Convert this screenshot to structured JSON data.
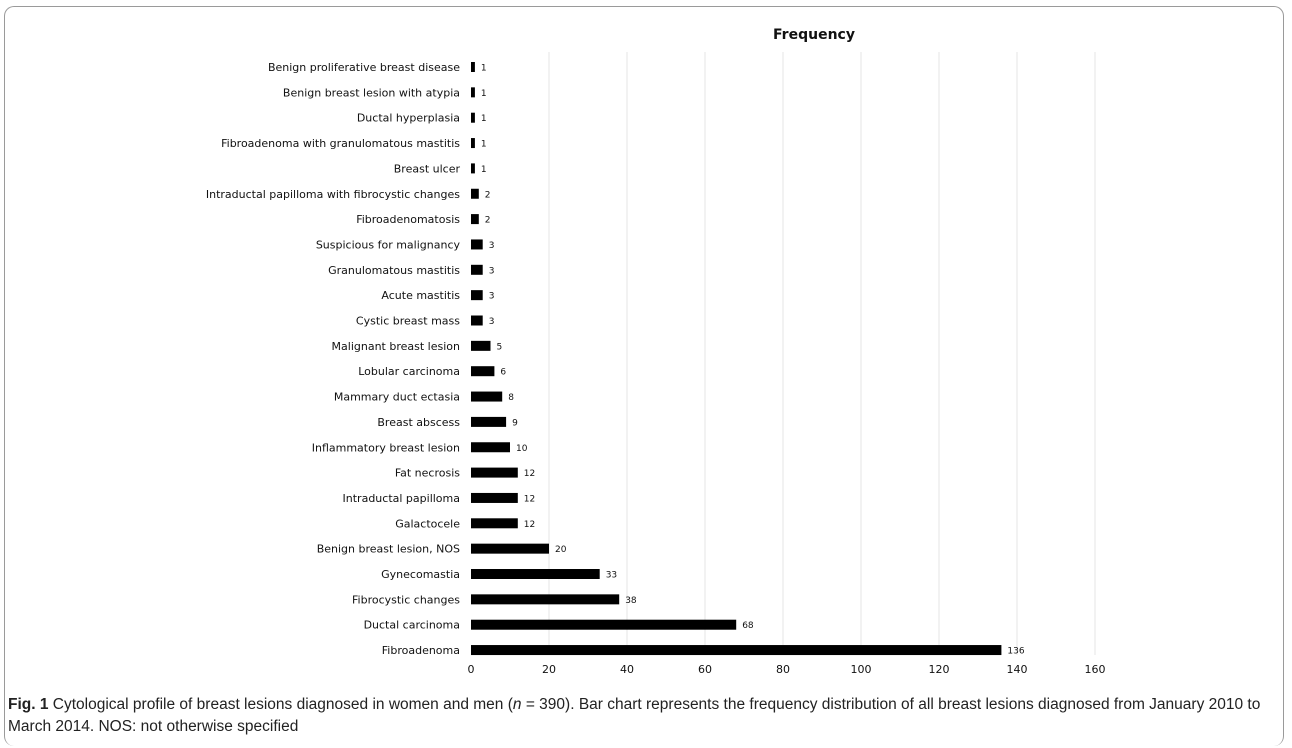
{
  "chart_data": {
    "type": "bar",
    "orientation": "horizontal",
    "title": "Frequency",
    "xlim": [
      0,
      160
    ],
    "xticks": [
      0,
      20,
      40,
      60,
      80,
      100,
      120,
      140,
      160
    ],
    "grid": true,
    "categories": [
      "Benign proliferative breast disease",
      "Benign breast lesion with atypia",
      "Ductal hyperplasia",
      "Fibroadenoma with granulomatous mastitis",
      "Breast ulcer",
      "Intraductal papilloma with fibrocystic changes",
      "Fibroadenomatosis",
      "Suspicious for malignancy",
      "Granulomatous mastitis",
      "Acute mastitis",
      "Cystic breast mass",
      "Malignant breast lesion",
      "Lobular carcinoma",
      "Mammary duct ectasia",
      "Breast abscess",
      "Inflammatory breast lesion",
      "Fat necrosis",
      "Intraductal papilloma",
      "Galactocele",
      "Benign breast lesion, NOS",
      "Gynecomastia",
      "Fibrocystic changes",
      "Ductal carcinoma",
      "Fibroadenoma"
    ],
    "values": [
      1,
      1,
      1,
      1,
      1,
      2,
      2,
      3,
      3,
      3,
      3,
      5,
      6,
      8,
      9,
      10,
      12,
      12,
      12,
      20,
      33,
      38,
      68,
      136
    ],
    "bar_color": "#000000"
  },
  "caption": {
    "label": "Fig. 1",
    "text_before_n": " Cytological profile of breast lesions diagnosed in women and men (",
    "n_symbol": "n",
    "text_after_n": " = 390). Bar chart represents the frequency distribution of all breast lesions diagnosed from January 2010 to March 2014. NOS: not otherwise specified"
  }
}
